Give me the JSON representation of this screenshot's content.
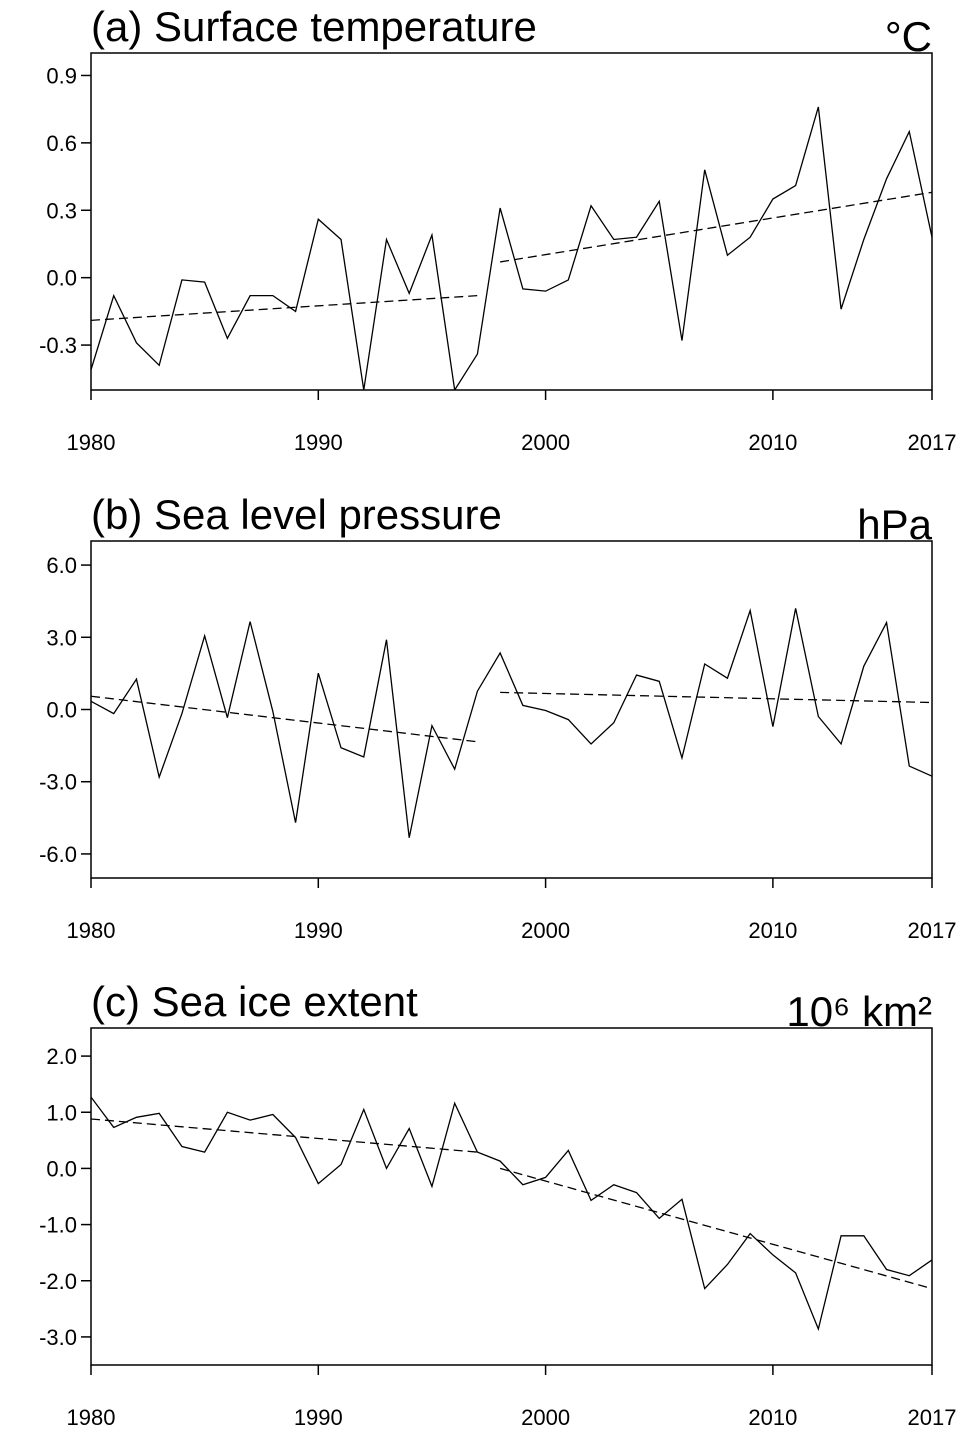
{
  "chart_data": [
    {
      "type": "line",
      "title": "(a) Surface temperature",
      "unit": "°C",
      "x": [
        1980,
        1981,
        1982,
        1983,
        1984,
        1985,
        1986,
        1987,
        1988,
        1989,
        1990,
        1991,
        1992,
        1993,
        1994,
        1995,
        1996,
        1997,
        1998,
        1999,
        2000,
        2001,
        2002,
        2003,
        2004,
        2005,
        2006,
        2007,
        2008,
        2009,
        2010,
        2011,
        2012,
        2013,
        2014,
        2015,
        2016,
        2017
      ],
      "series": [
        {
          "color": "#000000",
          "values": [
            -0.41,
            -0.08,
            -0.29,
            -0.39,
            -0.01,
            -0.02,
            -0.27,
            -0.08,
            -0.08,
            -0.15,
            0.26,
            0.17,
            -0.5,
            0.17,
            -0.07,
            0.19,
            -0.5,
            -0.34,
            0.31,
            -0.05,
            -0.06,
            -0.01,
            0.32,
            0.17,
            0.18,
            0.34,
            -0.28,
            0.48,
            0.1,
            0.18,
            0.35,
            0.41,
            0.76,
            -0.14,
            0.17,
            0.44,
            0.65,
            0.18
          ]
        }
      ],
      "trends": [
        {
          "x": [
            1980,
            1997
          ],
          "values": [
            -0.19,
            -0.08
          ]
        },
        {
          "x": [
            1998,
            2017
          ],
          "values": [
            0.07,
            0.38
          ]
        }
      ],
      "xlim": [
        1980,
        2017
      ],
      "xticks": [
        1980,
        1990,
        2000,
        2010,
        2017
      ],
      "ylim": [
        -0.5,
        1.0
      ],
      "yticks": [
        -0.3,
        {
          "value": 0,
          "label": "0.0"
        },
        0.3,
        0.6,
        0.9
      ]
    },
    {
      "type": "line",
      "title": "(b) Sea level pressure",
      "unit": "hPa",
      "x": [
        1980,
        1981,
        1982,
        1983,
        1984,
        1985,
        1986,
        1987,
        1988,
        1989,
        1990,
        1991,
        1992,
        1993,
        1994,
        1995,
        1996,
        1997,
        1998,
        1999,
        2000,
        2001,
        2002,
        2003,
        2004,
        2005,
        2006,
        2007,
        2008,
        2009,
        2010,
        2011,
        2012,
        2013,
        2014,
        2015,
        2016,
        2017
      ],
      "series": [
        {
          "color": "#000000",
          "values": [
            0.34,
            -0.17,
            1.26,
            -2.81,
            -0.17,
            3.06,
            -0.34,
            3.65,
            -0.08,
            -4.7,
            1.51,
            -1.59,
            -1.97,
            2.9,
            -5.33,
            -0.67,
            -2.48,
            0.76,
            2.35,
            0.17,
            -0.04,
            -0.42,
            -1.43,
            -0.55,
            1.43,
            1.17,
            -2.01,
            1.89,
            1.3,
            4.11,
            -0.71,
            4.2,
            -0.29,
            -1.43,
            1.8,
            3.61,
            -2.35,
            -2.77
          ]
        }
      ],
      "trends": [
        {
          "x": [
            1980,
            1997
          ],
          "values": [
            0.55,
            -1.34
          ]
        },
        {
          "x": [
            1998,
            2017
          ],
          "values": [
            0.71,
            0.29
          ]
        }
      ],
      "xlim": [
        1980,
        2017
      ],
      "xticks": [
        1980,
        1990,
        2000,
        2010,
        2017
      ],
      "ylim": [
        -7,
        7
      ],
      "yticks": [
        {
          "value": -6,
          "label": "-6.0"
        },
        {
          "value": -3,
          "label": "-3.0"
        },
        {
          "value": 0,
          "label": "0.0"
        },
        {
          "value": 3,
          "label": "3.0"
        },
        {
          "value": 6,
          "label": "6.0"
        }
      ]
    },
    {
      "type": "line",
      "title": "(c) Sea ice extent",
      "unit": "10⁶ km²",
      "x": [
        1980,
        1981,
        1982,
        1983,
        1984,
        1985,
        1986,
        1987,
        1988,
        1989,
        1990,
        1991,
        1992,
        1993,
        1994,
        1995,
        1996,
        1997,
        1998,
        1999,
        2000,
        2001,
        2002,
        2003,
        2004,
        2005,
        2006,
        2007,
        2008,
        2009,
        2010,
        2011,
        2012,
        2013,
        2014,
        2015,
        2016,
        2017
      ],
      "series": [
        {
          "color": "#000000",
          "values": [
            1.27,
            0.73,
            0.91,
            0.98,
            0.39,
            0.29,
            1.0,
            0.86,
            0.96,
            0.55,
            -0.27,
            0.07,
            1.05,
            0.0,
            0.71,
            -0.32,
            1.16,
            0.29,
            0.13,
            -0.29,
            -0.16,
            0.32,
            -0.57,
            -0.29,
            -0.43,
            -0.89,
            -0.55,
            -2.14,
            -1.71,
            -1.16,
            -1.54,
            -1.86,
            -2.86,
            -1.2,
            -1.2,
            -1.8,
            -1.91,
            -1.63
          ]
        }
      ],
      "trends": [
        {
          "x": [
            1980,
            1997
          ],
          "values": [
            0.88,
            0.29
          ]
        },
        {
          "x": [
            1998,
            2017
          ],
          "values": [
            0.0,
            -2.14
          ]
        }
      ],
      "xlim": [
        1980,
        2017
      ],
      "xticks": [
        1980,
        1990,
        2000,
        2010,
        2017
      ],
      "ylim": [
        -3.5,
        2.5
      ],
      "yticks": [
        {
          "value": -3,
          "label": "-3.0"
        },
        {
          "value": -2,
          "label": "-2.0"
        },
        {
          "value": -1,
          "label": "-1.0"
        },
        {
          "value": 0,
          "label": "0.0"
        },
        {
          "value": 1,
          "label": "1.0"
        },
        {
          "value": 2,
          "label": "2.0"
        }
      ]
    }
  ]
}
